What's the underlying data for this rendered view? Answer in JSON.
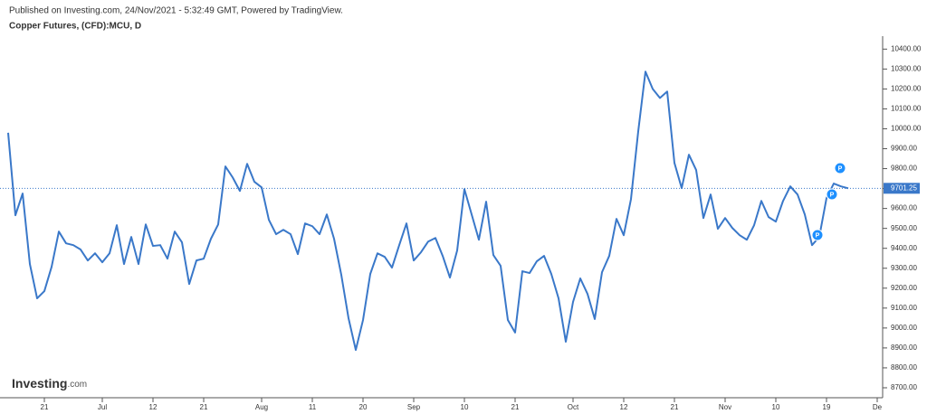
{
  "chart_data": {
    "type": "line",
    "published": "Published on Investing.com, 24/Nov/2021 - 5:32:49 GMT, Powered by TradingView.",
    "title": "Copper Futures, (CFD):MCU, D",
    "logo": "Investing",
    "logo_suffix": ".com",
    "categories": [
      null,
      null,
      null,
      null,
      null,
      "21",
      null,
      null,
      null,
      null,
      null,
      null,
      null,
      "Jul",
      null,
      null,
      null,
      null,
      null,
      null,
      "12",
      null,
      null,
      null,
      null,
      null,
      null,
      "21",
      null,
      null,
      null,
      null,
      null,
      null,
      null,
      "Aug",
      null,
      null,
      null,
      null,
      null,
      null,
      "11",
      null,
      null,
      null,
      null,
      null,
      null,
      "20",
      null,
      null,
      null,
      null,
      null,
      null,
      "Sep",
      null,
      null,
      null,
      null,
      null,
      null,
      "10",
      null,
      null,
      null,
      null,
      null,
      null,
      "21",
      null,
      null,
      null,
      null,
      null,
      null,
      null,
      "Oct",
      null,
      null,
      null,
      null,
      null,
      null,
      "12",
      null,
      null,
      null,
      null,
      null,
      null,
      "21",
      null,
      null,
      null,
      null,
      null,
      null,
      "Nov",
      null,
      null,
      null,
      null,
      null,
      null,
      "10",
      null,
      null,
      null,
      null,
      null,
      null,
      "19",
      null,
      null,
      null,
      null,
      null,
      null,
      "De"
    ],
    "series": [
      {
        "name": "MCU",
        "color": "#3a78c9",
        "values": [
          9980,
          9566,
          9675,
          9321,
          9149,
          9185,
          9307,
          9484,
          9425,
          9416,
          9394,
          9339,
          9375,
          9330,
          9375,
          9516,
          9321,
          9457,
          9321,
          9520,
          9412,
          9416,
          9348,
          9484,
          9430,
          9221,
          9339,
          9348,
          9448,
          9520,
          9811,
          9756,
          9688,
          9824,
          9734,
          9706,
          9543,
          9471,
          9493,
          9471,
          9371,
          9525,
          9511,
          9471,
          9570,
          9448,
          9267,
          9049,
          8890,
          9040,
          9271,
          9375,
          9357,
          9303,
          9416,
          9525,
          9339,
          9380,
          9434,
          9452,
          9362,
          9253,
          9389,
          9697,
          9570,
          9443,
          9634,
          9366,
          9312,
          9040,
          8977,
          9285,
          9276,
          9335,
          9362,
          9271,
          9149,
          8931,
          9131,
          9249,
          9171,
          9045,
          9280,
          9362,
          9548,
          9466,
          9647,
          9987,
          10287,
          10200,
          10155,
          10187,
          9829,
          9702,
          9870,
          9793,
          9552,
          9670,
          9498,
          9552,
          9502,
          9466,
          9443,
          9516,
          9638,
          9557,
          9534,
          9638,
          9711,
          9670,
          9570,
          9416,
          9457,
          9652,
          9725,
          9711,
          9701.25,
          null,
          null,
          null,
          null
        ]
      }
    ],
    "last_value": 9701.25,
    "markers": [
      "P",
      "P",
      "P"
    ],
    "ylim": [
      8650,
      10465
    ],
    "yticks": [
      {
        "value": 8700,
        "label": "8700.00"
      },
      {
        "value": 8800,
        "label": "8800.00"
      },
      {
        "value": 8900,
        "label": "8900.00"
      },
      {
        "value": 9000,
        "label": "9000.00"
      },
      {
        "value": 9100,
        "label": "9100.00"
      },
      {
        "value": 9200,
        "label": "9200.00"
      },
      {
        "value": 9300,
        "label": "9300.00"
      },
      {
        "value": 9400,
        "label": "9400.00"
      },
      {
        "value": 9500,
        "label": "9500.00"
      },
      {
        "value": 9600,
        "label": "9600.00"
      },
      {
        "value": 9700,
        "label": "9700.00"
      },
      {
        "value": 9800,
        "label": "9800.00"
      },
      {
        "value": 9900,
        "label": "9900.00"
      },
      {
        "value": 10000,
        "label": "10000.00"
      },
      {
        "value": 10100,
        "label": "10100.00"
      },
      {
        "value": 10200,
        "label": "10200.00"
      },
      {
        "value": 10300,
        "label": "10300.00"
      },
      {
        "value": 10400,
        "label": "10400.00"
      }
    ]
  }
}
